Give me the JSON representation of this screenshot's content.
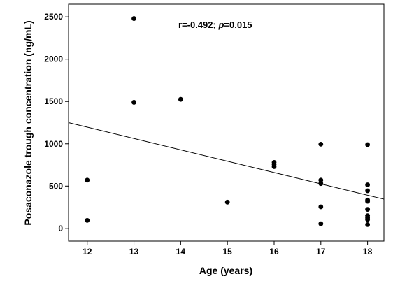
{
  "chart_data": {
    "type": "scatter",
    "xlabel": "Age (years)",
    "ylabel": "Posaconazole trough concentration (ng/mL)",
    "xlim": [
      11.6,
      18.35
    ],
    "ylim": [
      -150,
      2650
    ],
    "x_ticks": [
      12,
      13,
      14,
      15,
      16,
      17,
      18
    ],
    "y_ticks": [
      0,
      500,
      1000,
      1500,
      2000,
      2500
    ],
    "annotation": {
      "prefix": "r=-0.492; ",
      "p_symbol": "p",
      "suffix": "=0.015"
    },
    "points": [
      {
        "x": 12,
        "y": 570
      },
      {
        "x": 12,
        "y": 95
      },
      {
        "x": 13,
        "y": 2480
      },
      {
        "x": 13,
        "y": 1490
      },
      {
        "x": 14,
        "y": 1525
      },
      {
        "x": 15,
        "y": 310
      },
      {
        "x": 16,
        "y": 780
      },
      {
        "x": 16,
        "y": 755
      },
      {
        "x": 16,
        "y": 730
      },
      {
        "x": 17,
        "y": 995
      },
      {
        "x": 17,
        "y": 570
      },
      {
        "x": 17,
        "y": 530
      },
      {
        "x": 17,
        "y": 255
      },
      {
        "x": 17,
        "y": 55
      },
      {
        "x": 18,
        "y": 990
      },
      {
        "x": 18,
        "y": 515
      },
      {
        "x": 18,
        "y": 445
      },
      {
        "x": 18,
        "y": 335
      },
      {
        "x": 18,
        "y": 320
      },
      {
        "x": 18,
        "y": 225
      },
      {
        "x": 18,
        "y": 150
      },
      {
        "x": 18,
        "y": 125
      },
      {
        "x": 18,
        "y": 105
      },
      {
        "x": 18,
        "y": 45
      }
    ],
    "fit_line": {
      "x": [
        11.6,
        18.35
      ],
      "y": [
        1250,
        345
      ]
    },
    "grid": false,
    "colors": {
      "marker": "#000000",
      "line": "#000000",
      "frame": "#000000"
    }
  }
}
